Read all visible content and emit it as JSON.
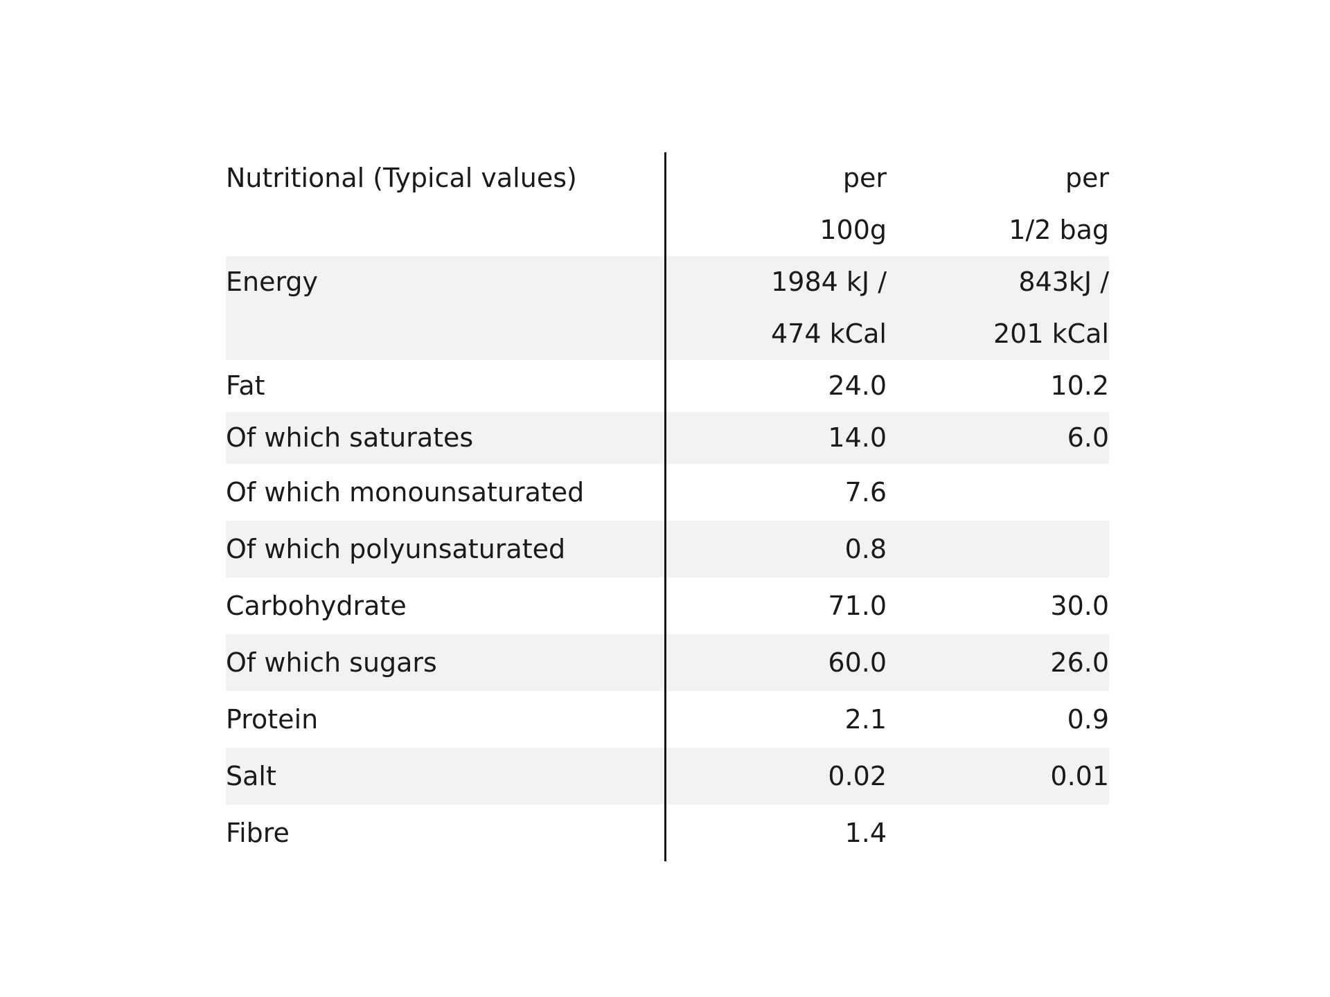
{
  "table": {
    "header": [
      [
        "Nutritional (Typical values)"
      ],
      [
        "per",
        "100g"
      ],
      [
        "per",
        "1/2 bag"
      ]
    ],
    "rows": [
      [
        [
          "Energy"
        ],
        [
          "1984 kJ /",
          "474 kCal"
        ],
        [
          "843kJ /",
          "201 kCal"
        ]
      ],
      [
        [
          "Fat"
        ],
        [
          "24.0"
        ],
        [
          "10.2"
        ]
      ],
      [
        [
          "Of which saturates"
        ],
        [
          "14.0"
        ],
        [
          "6.0"
        ]
      ],
      [
        [
          "Of which monounsaturated"
        ],
        [
          "7.6"
        ],
        null
      ],
      [
        [
          "Of which polyunsaturated"
        ],
        [
          "0.8"
        ],
        null
      ],
      [
        [
          "Carbohydrate"
        ],
        [
          "71.0"
        ],
        [
          "30.0"
        ]
      ],
      [
        [
          "Of which sugars"
        ],
        [
          "60.0"
        ],
        [
          "26.0"
        ]
      ],
      [
        [
          "Protein"
        ],
        [
          "2.1"
        ],
        [
          "0.9"
        ]
      ],
      [
        [
          "Salt"
        ],
        [
          "0.02"
        ],
        [
          "0.01"
        ]
      ],
      [
        [
          "Fibre"
        ],
        [
          "1.4"
        ],
        null
      ]
    ]
  }
}
